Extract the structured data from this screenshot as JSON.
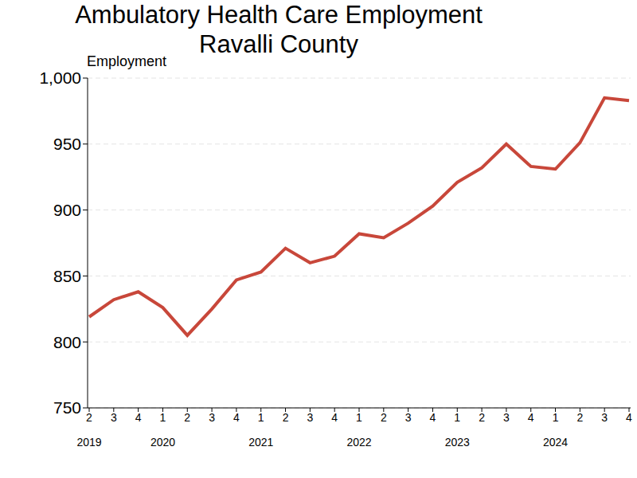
{
  "chart_data": {
    "type": "line",
    "title": "Ambulatory Health Care Employment",
    "subtitle": "Ravalli County",
    "y_label": "Employment",
    "categories": [
      "2",
      "3",
      "4",
      "1",
      "2",
      "3",
      "4",
      "1",
      "2",
      "3",
      "4",
      "1",
      "2",
      "3",
      "4",
      "1",
      "2",
      "3",
      "4",
      "1",
      "2",
      "3",
      "4"
    ],
    "year_labels": [
      "2019",
      null,
      null,
      "2020",
      null,
      null,
      null,
      "2021",
      null,
      null,
      null,
      "2022",
      null,
      null,
      null,
      "2023",
      null,
      null,
      null,
      "2024",
      null,
      null,
      null
    ],
    "values": [
      819,
      832,
      838,
      826,
      805,
      825,
      847,
      853,
      871,
      860,
      865,
      882,
      879,
      890,
      903,
      921,
      932,
      950,
      933,
      931,
      951,
      985,
      983
    ],
    "color": "#c8473a",
    "ylim": [
      750,
      1000
    ],
    "yticks": [
      750,
      800,
      850,
      900,
      950,
      {
        "value": 1000,
        "label": "1,000"
      }
    ],
    "grid": true
  }
}
